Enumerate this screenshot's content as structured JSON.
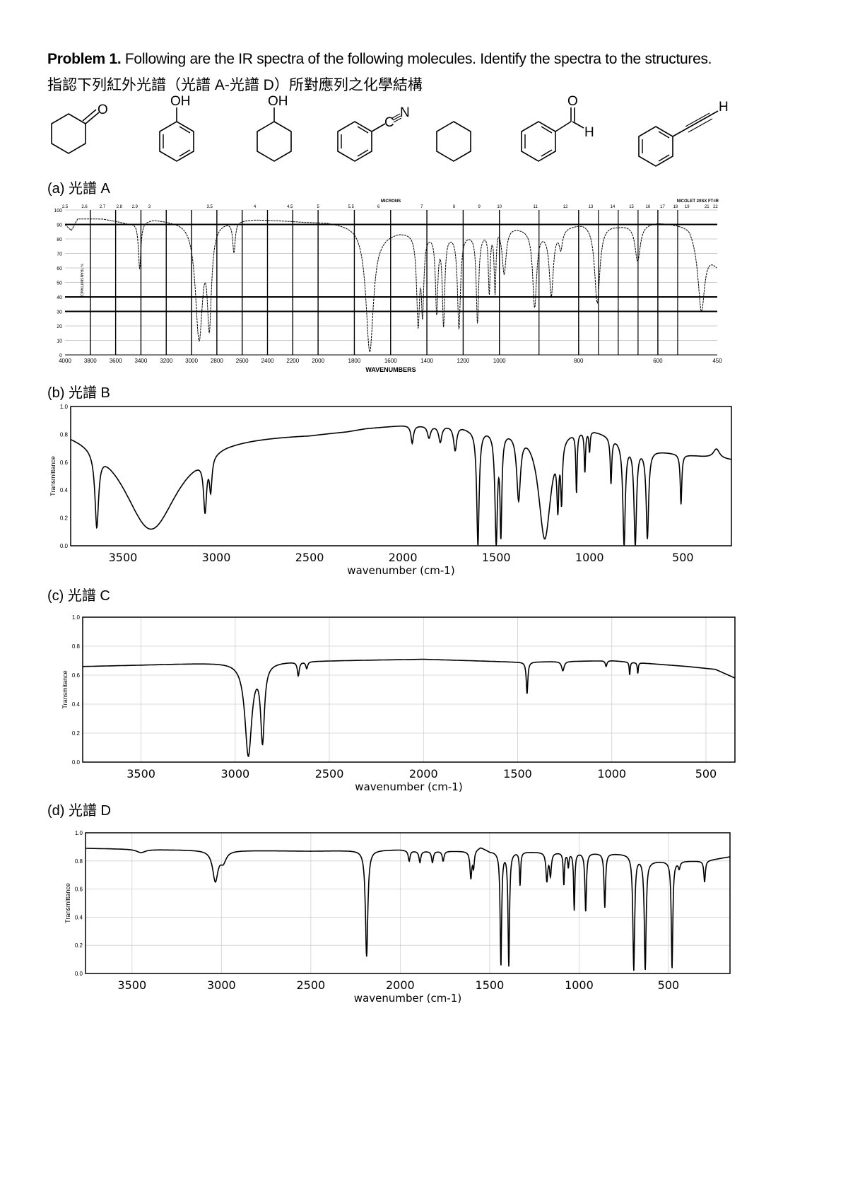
{
  "header": {
    "problem_label": "Problem 1.",
    "title_rest": " Following are the IR spectra of the following molecules. Identify the spectra to the structures.",
    "subtitle": "指認下列紅外光譜（光譜  A-光譜 D）所對應列之化學結構"
  },
  "molecules": [
    {
      "name": "cyclohexanone",
      "labels": [
        "O"
      ]
    },
    {
      "name": "phenol",
      "labels": [
        "OH"
      ]
    },
    {
      "name": "cyclohexanol",
      "labels": [
        "OH"
      ]
    },
    {
      "name": "benzonitrile",
      "labels": [
        "C",
        "N"
      ]
    },
    {
      "name": "cyclohexane",
      "labels": []
    },
    {
      "name": "benzaldehyde",
      "labels": [
        "O",
        "H"
      ]
    },
    {
      "name": "phenylacetylene",
      "labels": [
        "H"
      ]
    }
  ],
  "sections": [
    {
      "label": "(a)  光譜 A"
    },
    {
      "label": "(b)  光譜 B"
    },
    {
      "label": "(c)  光譜 C"
    },
    {
      "label": "(d)  光譜 D"
    }
  ],
  "colors": {
    "line": "#000000",
    "grid": "#cfcfcf"
  },
  "chart_data": [
    {
      "id": "A",
      "type": "line",
      "title": "",
      "xlabel": "WAVENUMBERS",
      "ylabel": "% TRANSMITTANCE",
      "top_axis_label": "MICRONS",
      "corner_label": "NICOLET 20SX FT-IR",
      "xlim": [
        4000,
        450
      ],
      "ylim": [
        0,
        100
      ],
      "grid": true,
      "xticks": [
        4000,
        3800,
        3600,
        3400,
        3200,
        3000,
        2800,
        2600,
        2400,
        2200,
        2000,
        1800,
        1600,
        1400,
        1200,
        1000,
        800,
        600,
        450
      ],
      "yticks": [
        0,
        10,
        20,
        30,
        40,
        50,
        60,
        70,
        80,
        90,
        100
      ],
      "micron_ticks": [
        2.5,
        2.6,
        2.7,
        2.8,
        2.9,
        3,
        3.5,
        4,
        4.5,
        5,
        5.5,
        6,
        7,
        8,
        9,
        10,
        11,
        12,
        13,
        14,
        15,
        16,
        17,
        18,
        19,
        21,
        22
      ],
      "baseline": [
        [
          4000,
          90
        ],
        [
          3950,
          86
        ],
        [
          3900,
          94
        ],
        [
          3700,
          94
        ],
        [
          3500,
          91
        ],
        [
          3300,
          94
        ],
        [
          3150,
          93
        ],
        [
          2500,
          94
        ],
        [
          2100,
          92
        ],
        [
          1950,
          92
        ],
        [
          1800,
          90
        ],
        [
          1650,
          84
        ],
        [
          1550,
          86
        ],
        [
          1100,
          84
        ],
        [
          1000,
          91
        ],
        [
          880,
          86
        ],
        [
          790,
          92
        ],
        [
          700,
          90
        ],
        [
          600,
          92
        ],
        [
          520,
          90
        ],
        [
          450,
          62
        ]
      ],
      "peaks": [
        [
          3410,
          60,
          12
        ],
        [
          2940,
          10,
          35
        ],
        [
          2860,
          18,
          20
        ],
        [
          2665,
          72,
          12
        ],
        [
          1715,
          2,
          25
        ],
        [
          1448,
          20,
          10
        ],
        [
          1424,
          28,
          8
        ],
        [
          1346,
          29,
          8
        ],
        [
          1308,
          20,
          8
        ],
        [
          1223,
          18,
          10
        ],
        [
          1121,
          22,
          8
        ],
        [
          1056,
          43,
          6
        ],
        [
          1024,
          43,
          6
        ],
        [
          988,
          57,
          6
        ],
        [
          911,
          33,
          6
        ],
        [
          869,
          41,
          6
        ],
        [
          845,
          75,
          5
        ],
        [
          753,
          36,
          8
        ],
        [
          651,
          65,
          8
        ],
        [
          490,
          30,
          10
        ]
      ]
    },
    {
      "id": "B",
      "type": "line",
      "title": "",
      "xlabel": "wavenumber (cm-1)",
      "ylabel": "Transmittance",
      "xlim": [
        3780,
        240
      ],
      "ylim": [
        0,
        1.0
      ],
      "grid": false,
      "xticks": [
        3500,
        3000,
        2500,
        2000,
        1500,
        1000,
        500
      ],
      "yticks": [
        "0.0",
        "0.2",
        "0.4",
        "0.6",
        "0.8",
        "1.0"
      ],
      "baseline": [
        [
          3780,
          0.88
        ],
        [
          3700,
          0.87
        ],
        [
          3100,
          0.8
        ],
        [
          2950,
          0.82
        ],
        [
          2500,
          0.82
        ],
        [
          2300,
          0.84
        ],
        [
          2200,
          0.86
        ],
        [
          2000,
          0.88
        ],
        [
          1700,
          0.88
        ],
        [
          1650,
          0.86
        ],
        [
          1000,
          0.86
        ],
        [
          700,
          0.7
        ],
        [
          500,
          0.66
        ],
        [
          240,
          0.62
        ]
      ],
      "peaks": [
        [
          3640,
          0.17,
          12
        ],
        [
          3350,
          0.12,
          180
        ],
        [
          3060,
          0.31,
          10
        ],
        [
          3030,
          0.5,
          8
        ],
        [
          1950,
          0.75,
          8
        ],
        [
          1860,
          0.79,
          10
        ],
        [
          1800,
          0.76,
          10
        ],
        [
          1720,
          0.7,
          10
        ],
        [
          1598,
          0.0,
          8
        ],
        [
          1500,
          0.0,
          8
        ],
        [
          1475,
          0.05,
          6
        ],
        [
          1380,
          0.35,
          12
        ],
        [
          1240,
          0.05,
          40
        ],
        [
          1170,
          0.3,
          6
        ],
        [
          1150,
          0.35,
          5
        ],
        [
          1070,
          0.4,
          4
        ],
        [
          1025,
          0.55,
          4
        ],
        [
          1000,
          0.7,
          4
        ],
        [
          885,
          0.46,
          5
        ],
        [
          815,
          0.0,
          8
        ],
        [
          755,
          0.0,
          8
        ],
        [
          690,
          0.05,
          8
        ],
        [
          510,
          0.3,
          5
        ],
        [
          430,
          0.65,
          8
        ],
        [
          320,
          0.7,
          20
        ]
      ]
    },
    {
      "id": "C",
      "type": "line",
      "title": "",
      "xlabel": "wavenumber (cm-1)",
      "ylabel": "Transmitance",
      "xlim": [
        3810,
        346
      ],
      "ylim": [
        0,
        1.0
      ],
      "grid": true,
      "xticks": [
        3500,
        3000,
        2500,
        2000,
        1500,
        1000,
        500
      ],
      "yticks": [
        "0.0",
        "0.2",
        "0.4",
        "0.6",
        "0.8",
        "1.0"
      ],
      "baseline": [
        [
          3810,
          0.66
        ],
        [
          3500,
          0.67
        ],
        [
          3000,
          0.69
        ],
        [
          2500,
          0.7
        ],
        [
          2000,
          0.71
        ],
        [
          1500,
          0.69
        ],
        [
          1000,
          0.7
        ],
        [
          800,
          0.68
        ],
        [
          600,
          0.66
        ],
        [
          450,
          0.64
        ],
        [
          346,
          0.58
        ]
      ],
      "peaks": [
        [
          2930,
          0.04,
          22
        ],
        [
          2855,
          0.13,
          12
        ],
        [
          2665,
          0.6,
          6
        ],
        [
          2620,
          0.65,
          6
        ],
        [
          1450,
          0.47,
          5
        ],
        [
          1260,
          0.63,
          8
        ],
        [
          1030,
          0.66,
          5
        ],
        [
          905,
          0.6,
          3
        ],
        [
          862,
          0.61,
          3
        ]
      ]
    },
    {
      "id": "D",
      "type": "line",
      "title": "",
      "xlabel": "wavenumber (cm-1)",
      "ylabel": "Transmittance",
      "xlim": [
        3760,
        156
      ],
      "ylim": [
        0,
        1.0
      ],
      "grid": true,
      "xticks": [
        3500,
        3000,
        2500,
        2000,
        1500,
        1000,
        500
      ],
      "yticks": [
        "0.0",
        "0.2",
        "0.4",
        "0.6",
        "0.8",
        "1.0"
      ],
      "baseline": [
        [
          3760,
          0.89
        ],
        [
          3300,
          0.88
        ],
        [
          2500,
          0.87
        ],
        [
          2000,
          0.88
        ],
        [
          1900,
          0.87
        ],
        [
          1600,
          0.87
        ],
        [
          1550,
          0.9
        ],
        [
          1500,
          0.87
        ],
        [
          1000,
          0.86
        ],
        [
          700,
          0.85
        ],
        [
          600,
          0.8
        ],
        [
          300,
          0.8
        ],
        [
          156,
          0.83
        ]
      ],
      "peaks": [
        [
          3450,
          0.86,
          30
        ],
        [
          3034,
          0.66,
          18
        ],
        [
          2990,
          0.8,
          20
        ],
        [
          2188,
          0.12,
          8
        ],
        [
          1950,
          0.8,
          6
        ],
        [
          1890,
          0.79,
          6
        ],
        [
          1820,
          0.79,
          6
        ],
        [
          1760,
          0.8,
          6
        ],
        [
          1605,
          0.68,
          6
        ],
        [
          1590,
          0.76,
          5
        ],
        [
          1437,
          0.05,
          5
        ],
        [
          1393,
          0.05,
          5
        ],
        [
          1330,
          0.63,
          4
        ],
        [
          1180,
          0.66,
          6
        ],
        [
          1160,
          0.7,
          6
        ],
        [
          1085,
          0.63,
          4
        ],
        [
          1060,
          0.76,
          4
        ],
        [
          1027,
          0.45,
          4
        ],
        [
          963,
          0.44,
          5
        ],
        [
          856,
          0.47,
          5
        ],
        [
          694,
          0.02,
          6
        ],
        [
          630,
          0.02,
          6
        ],
        [
          480,
          0.03,
          5
        ],
        [
          440,
          0.75,
          6
        ],
        [
          298,
          0.65,
          5
        ]
      ]
    }
  ]
}
